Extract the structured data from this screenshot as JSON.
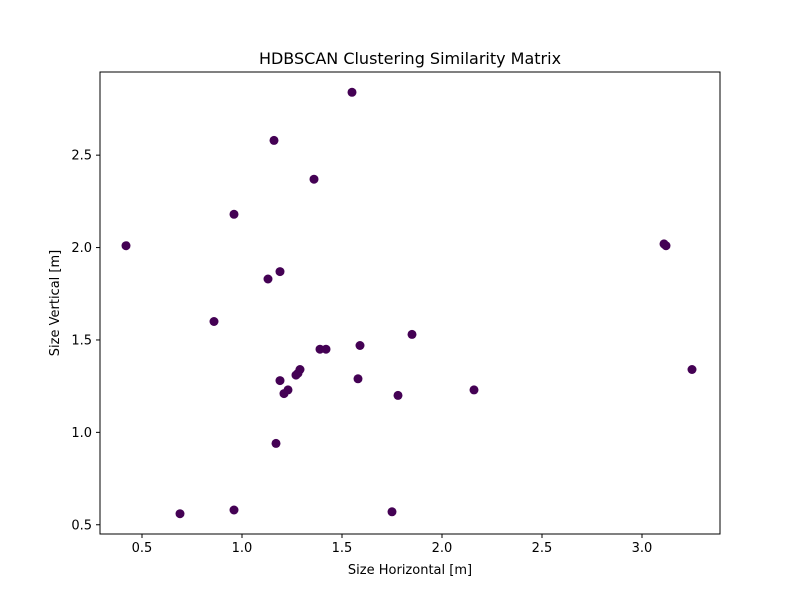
{
  "chart_data": {
    "type": "scatter",
    "title": "HDBSCAN Clustering Similarity Matrix",
    "xlabel": "Size Horizontal [m]",
    "ylabel": "Size Vertical [m]",
    "xlim": [
      0.29,
      3.39
    ],
    "ylim": [
      0.45,
      2.95
    ],
    "xticks": [
      0.5,
      1.0,
      1.5,
      2.0,
      2.5,
      3.0
    ],
    "xtick_labels": [
      "0.5",
      "1.0",
      "1.5",
      "2.0",
      "2.5",
      "3.0"
    ],
    "yticks": [
      0.5,
      1.0,
      1.5,
      2.0,
      2.5
    ],
    "ytick_labels": [
      "0.5",
      "1.0",
      "1.5",
      "2.0",
      "2.5"
    ],
    "grid": false,
    "marker_color": "#440154",
    "points": [
      {
        "x": 1.55,
        "y": 2.84
      },
      {
        "x": 1.16,
        "y": 2.58
      },
      {
        "x": 1.36,
        "y": 2.37
      },
      {
        "x": 0.96,
        "y": 2.18
      },
      {
        "x": 0.42,
        "y": 2.01
      },
      {
        "x": 3.11,
        "y": 2.02
      },
      {
        "x": 3.12,
        "y": 2.01
      },
      {
        "x": 1.19,
        "y": 1.87
      },
      {
        "x": 1.13,
        "y": 1.83
      },
      {
        "x": 0.86,
        "y": 1.6
      },
      {
        "x": 1.85,
        "y": 1.53
      },
      {
        "x": 1.59,
        "y": 1.47
      },
      {
        "x": 1.39,
        "y": 1.45
      },
      {
        "x": 1.42,
        "y": 1.45
      },
      {
        "x": 1.29,
        "y": 1.34
      },
      {
        "x": 1.28,
        "y": 1.32
      },
      {
        "x": 1.27,
        "y": 1.31
      },
      {
        "x": 3.25,
        "y": 1.34
      },
      {
        "x": 1.58,
        "y": 1.29
      },
      {
        "x": 1.19,
        "y": 1.28
      },
      {
        "x": 1.23,
        "y": 1.23
      },
      {
        "x": 1.21,
        "y": 1.21
      },
      {
        "x": 2.16,
        "y": 1.23
      },
      {
        "x": 1.78,
        "y": 1.2
      },
      {
        "x": 1.17,
        "y": 0.94
      },
      {
        "x": 0.96,
        "y": 0.58
      },
      {
        "x": 0.69,
        "y": 0.56
      },
      {
        "x": 1.75,
        "y": 0.57
      }
    ]
  }
}
